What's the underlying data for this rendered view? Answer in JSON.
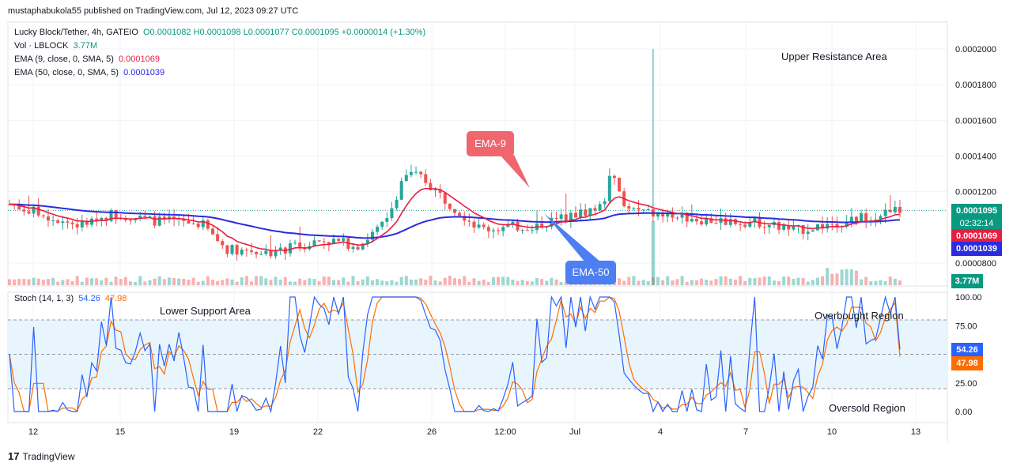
{
  "header": {
    "published_line": "mustaphabukola55 published on TradingView.com, Jul 12, 2023 09:27 UTC"
  },
  "legend": {
    "symbol": "Lucky Block/Tether, 4h, GATEIO",
    "ohlc": "O0.0001082 H0.0001098 L0.0001077 C0.0001095 +0.0000014 (+1.30%)",
    "vol_label": "Vol · LBLOCK",
    "vol_value": "3.77M",
    "ema9_label": "EMA (9, close, 0, SMA, 5)",
    "ema9_value": "0.0001069",
    "ema50_label": "EMA (50, close, 0, SMA, 5)",
    "ema50_value": "0.0001039",
    "stoch_label": "Stoch (14, 1, 3)",
    "stoch_k": "54.26",
    "stoch_d": "47.98"
  },
  "annotations": {
    "upper_resistance": "Upper Resistance Area",
    "lower_support": "Lower Support Area",
    "overbought": "Overbought Region",
    "oversold": "Oversold Region",
    "ema9_callout": "EMA-9",
    "ema50_callout": "EMA-50"
  },
  "price_axis_tags": {
    "last_price": "0.0001095",
    "countdown": "02:32:14",
    "ema9": "0.0001069",
    "ema50": "0.0001039",
    "volume": "3.77M",
    "stoch_k": "54.26",
    "stoch_d": "47.98"
  },
  "colors": {
    "up": "#26a69a",
    "down": "#ef5350",
    "ema9": "#e91e3f",
    "ema50": "#2b2be0",
    "stoch_k": "#2962ff",
    "stoch_d": "#ff6d00",
    "callout_ema9": "#f0666e",
    "callout_ema50": "#4d7ff2"
  },
  "footer": {
    "brand": "TradingView"
  },
  "chart_data": [
    {
      "type": "candlestick",
      "title": "Lucky Block/Tether, 4h, GATEIO",
      "ylim": [
        7e-05,
        0.0002
      ],
      "y_ticks": [
        "0.0002000",
        "0.0001800",
        "0.0001600",
        "0.0001400",
        "0.0001200",
        "0.0000800"
      ],
      "x_ticks": [
        "12",
        "15",
        "19",
        "22",
        "26",
        "12:00",
        "Jul",
        "4",
        "7",
        "10",
        "13"
      ],
      "last_close": 0.0001095,
      "series": [
        {
          "name": "EMA (9, close, 0, SMA, 5)",
          "last": 0.0001069
        },
        {
          "name": "EMA (50, close, 0, SMA, 5)",
          "last": 0.0001039
        }
      ]
    },
    {
      "type": "line",
      "title": "Stoch (14, 1, 3)",
      "ylim": [
        0,
        100
      ],
      "y_ticks": [
        "100.00",
        "75.00",
        "25.00",
        "0.00"
      ],
      "bands": [
        20,
        80
      ],
      "series": [
        {
          "name": "%K",
          "last": 54.26
        },
        {
          "name": "%D",
          "last": 47.98
        }
      ]
    }
  ]
}
